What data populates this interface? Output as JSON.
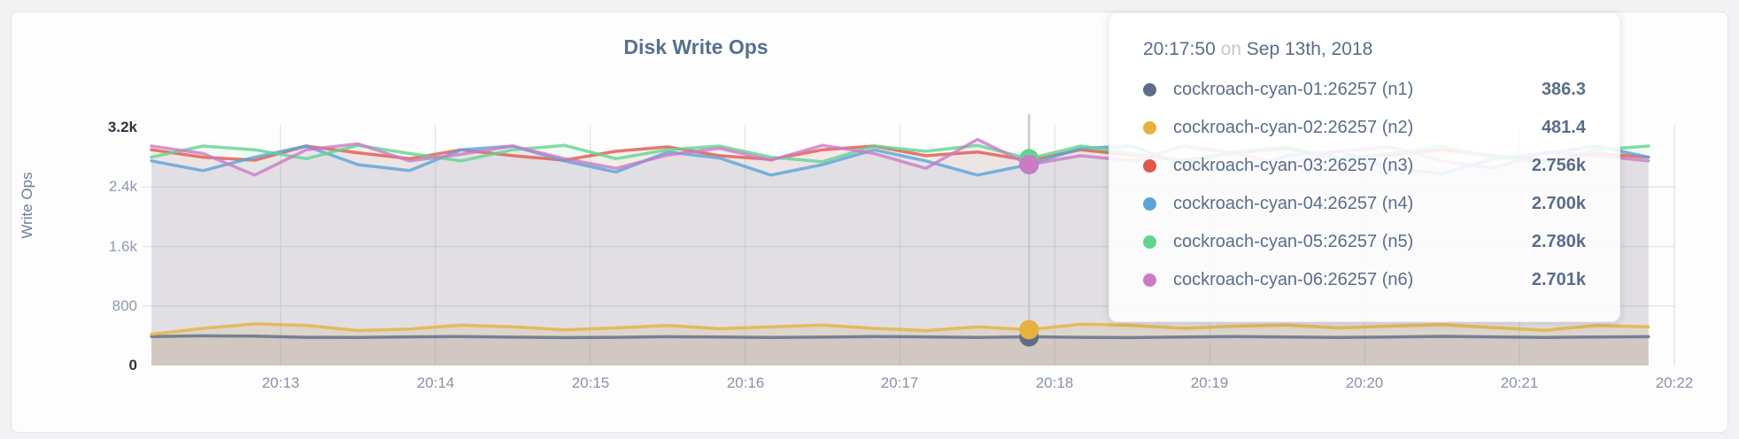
{
  "tooltip": {
    "time": "20:17:50",
    "conjunction": "on",
    "date": "Sep 13th, 2018"
  },
  "chart_data": {
    "type": "line",
    "title": "Disk Write Ops",
    "ylabel": "Write Ops",
    "xlabel": "",
    "grid": true,
    "legend_position": "tooltip",
    "ylim": [
      0,
      3200
    ],
    "y_ticks": [
      {
        "label": "0",
        "value": 0,
        "emphasis": true
      },
      {
        "label": "800",
        "value": 800,
        "emphasis": false
      },
      {
        "label": "1.6k",
        "value": 1600,
        "emphasis": false
      },
      {
        "label": "2.4k",
        "value": 2400,
        "emphasis": false
      },
      {
        "label": "3.2k",
        "value": 3200,
        "emphasis": true
      }
    ],
    "x_tick_labels": [
      "20:13",
      "20:14",
      "20:15",
      "20:16",
      "20:17",
      "20:18",
      "20:19",
      "20:20",
      "20:21",
      "20:22"
    ],
    "xlim_times": [
      "20:12:10",
      "20:22:00"
    ],
    "x_times": [
      "20:12:10",
      "20:12:30",
      "20:12:50",
      "20:13:10",
      "20:13:30",
      "20:13:50",
      "20:14:10",
      "20:14:30",
      "20:14:50",
      "20:15:10",
      "20:15:30",
      "20:15:50",
      "20:16:10",
      "20:16:30",
      "20:16:50",
      "20:17:10",
      "20:17:30",
      "20:17:50",
      "20:18:10",
      "20:18:30",
      "20:18:50",
      "20:19:10",
      "20:19:30",
      "20:19:50",
      "20:20:10",
      "20:20:30",
      "20:20:50",
      "20:21:10",
      "20:21:30",
      "20:21:50"
    ],
    "highlight_index": 17,
    "series": [
      {
        "id": "n1",
        "name": "cockroach-cyan-01:26257 (n1)",
        "color": "#5f6c87",
        "fill_opacity": 0.14,
        "highlight_display": "386.3",
        "values": [
          390,
          400,
          395,
          380,
          378,
          385,
          390,
          382,
          376,
          380,
          388,
          384,
          378,
          382,
          390,
          386,
          378,
          386.3,
          380,
          376,
          384,
          390,
          384,
          378,
          384,
          392,
          386,
          378,
          384,
          388
        ]
      },
      {
        "id": "n2",
        "name": "cockroach-cyan-02:26257 (n2)",
        "color": "#e5b13f",
        "fill_opacity": 0.16,
        "highlight_display": "481.4",
        "values": [
          420,
          500,
          560,
          540,
          470,
          490,
          545,
          520,
          480,
          505,
          540,
          495,
          520,
          545,
          500,
          470,
          520,
          481.4,
          555,
          540,
          500,
          530,
          545,
          505,
          530,
          550,
          510,
          475,
          540,
          520
        ]
      },
      {
        "id": "n3",
        "name": "cockroach-cyan-03:26257 (n3)",
        "color": "#e2574c",
        "fill_opacity": 0.08,
        "highlight_display": "2.756k",
        "values": [
          2900,
          2800,
          2760,
          2950,
          2860,
          2780,
          2900,
          2820,
          2760,
          2880,
          2940,
          2820,
          2770,
          2900,
          2950,
          2820,
          2870,
          2756,
          2900,
          2830,
          2760,
          2860,
          2920,
          2790,
          2830,
          2900,
          2820,
          2760,
          2850,
          2800
        ]
      },
      {
        "id": "n4",
        "name": "cockroach-cyan-04:26257 (n4)",
        "color": "#5ba3d9",
        "fill_opacity": 0.08,
        "highlight_display": "2.700k",
        "values": [
          2750,
          2620,
          2800,
          2950,
          2700,
          2620,
          2900,
          2950,
          2750,
          2600,
          2870,
          2790,
          2560,
          2700,
          2900,
          2750,
          2560,
          2700,
          2920,
          2950,
          2700,
          2600,
          2820,
          2880,
          2650,
          2580,
          2780,
          2850,
          2950,
          2800
        ]
      },
      {
        "id": "n5",
        "name": "cockroach-cyan-05:26257 (n5)",
        "color": "#63d392",
        "fill_opacity": 0.08,
        "highlight_display": "2.780k",
        "values": [
          2800,
          2950,
          2900,
          2780,
          2960,
          2850,
          2750,
          2900,
          2960,
          2780,
          2900,
          2950,
          2800,
          2740,
          2950,
          2880,
          2960,
          2780,
          2950,
          2850,
          2740,
          2880,
          2940,
          2780,
          2850,
          2950,
          2800,
          2730,
          2900,
          2950
        ]
      },
      {
        "id": "n6",
        "name": "cockroach-cyan-06:26257 (n6)",
        "color": "#cb7ac6",
        "fill_opacity": 0.08,
        "highlight_display": "2.701k",
        "values": [
          2950,
          2850,
          2560,
          2900,
          2980,
          2750,
          2840,
          2950,
          2780,
          2650,
          2830,
          2920,
          2760,
          2960,
          2850,
          2650,
          3040,
          2701,
          2820,
          2750,
          2950,
          2850,
          2700,
          2880,
          2940,
          2750,
          2650,
          2870,
          2820,
          2750
        ]
      }
    ]
  }
}
